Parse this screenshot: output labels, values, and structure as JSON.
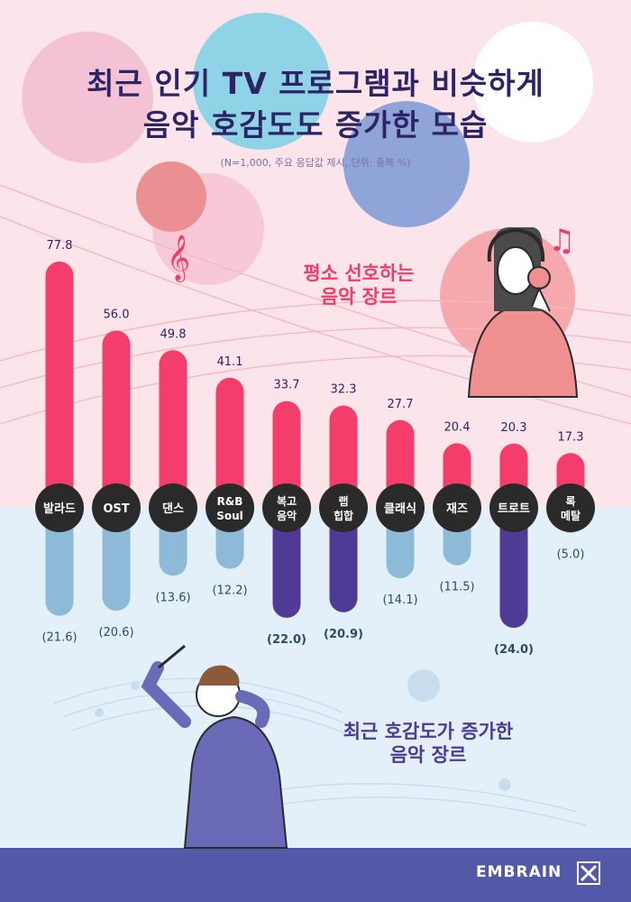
{
  "title_line1": "최근 인기 TV 프로그램과 비슷하게",
  "title_line2": "음악 호감도도 증가한 모습",
  "subtitle": "(N=1,000, 주요 응답값 제시, 단위: 중복 %)",
  "callout_preferred": [
    "평소 선호하는",
    "음악 장르"
  ],
  "callout_increased": [
    "최근 호감도가 증가한",
    "음악 장르"
  ],
  "brand": "EMBRAIN",
  "colors": {
    "preferred_bar": "#f53d6b",
    "increased_bar": "#8dbbd7",
    "increased_bar_highlight": "#4f3b96",
    "label_circle": "#2a2a2a"
  },
  "icons": [
    "treble-clef-icon",
    "music-note-icon",
    "embrain-logo-icon"
  ],
  "chart_data": {
    "type": "bar",
    "layout": "diverging",
    "categories": [
      [
        "발라드"
      ],
      [
        "OST"
      ],
      [
        "댄스"
      ],
      [
        "R&B",
        "Soul"
      ],
      [
        "복고",
        "음악"
      ],
      [
        "랩",
        "힙합"
      ],
      [
        "클래식"
      ],
      [
        "재즈"
      ],
      [
        "트로트"
      ],
      [
        "록",
        "메탈"
      ]
    ],
    "series": [
      {
        "name": "평소 선호하는 음악 장르",
        "values": [
          77.8,
          56.0,
          49.8,
          41.1,
          33.7,
          32.3,
          27.7,
          20.4,
          20.3,
          17.3
        ],
        "labels": [
          "77.8",
          "56.0",
          "49.8",
          "41.1",
          "33.7",
          "32.3",
          "27.7",
          "20.4",
          "20.3",
          "17.3"
        ]
      },
      {
        "name": "최근 호감도가 증가한 음악 장르",
        "values": [
          21.6,
          20.6,
          13.6,
          12.2,
          22.0,
          20.9,
          14.1,
          11.5,
          24.0,
          5.0
        ],
        "labels": [
          "(21.6)",
          "(20.6)",
          "(13.6)",
          "(12.2)",
          "(22.0)",
          "(20.9)",
          "(14.1)",
          "(11.5)",
          "(24.0)",
          "(5.0)"
        ],
        "highlighted": [
          "복고 음악",
          "랩 힙합",
          "트로트"
        ]
      }
    ]
  }
}
